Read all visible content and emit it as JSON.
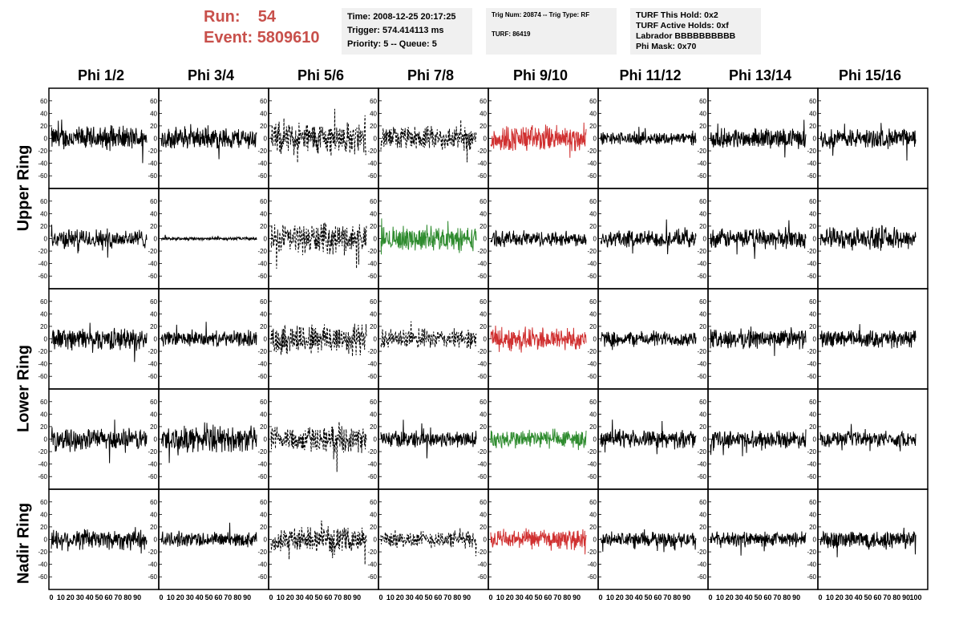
{
  "header": {
    "run_label": "Run:",
    "run_value": "54",
    "event_label": "Event:",
    "event_value": "5809610",
    "time": "Time: 2008-12-25 20:17:25",
    "trigger": "Trigger: 574.414113 ms",
    "priority": "Priority: 5 -- Queue: 5",
    "trig_num": "Trig Num: 20874 -- Trig Type: RF",
    "turf": "TURF: 86419",
    "turf_hold": "TURF This Hold: 0x2",
    "turf_active": "TURF Active Holds: 0xf",
    "labrador": "Labrador BBBBBBBBBB",
    "phi_mask": "Phi Mask: 0x70"
  },
  "columns": [
    "Phi 1/2",
    "Phi 3/4",
    "Phi 5/6",
    "Phi 7/8",
    "Phi 9/10",
    "Phi 11/12",
    "Phi 13/14",
    "Phi 15/16"
  ],
  "row_labels": [
    "Upper Ring",
    "Lower Ring",
    "Nadir Ring"
  ],
  "colors": {
    "accent": "#c8504b",
    "red_trace": "#d03030",
    "green_trace": "#2e8b2e",
    "black_trace": "#000000",
    "panel_bg": "#f0f0f0"
  },
  "chart_data": {
    "type": "line",
    "description_of_grid": "5 rows x 8 columns of waveform panels",
    "x_ticks": [
      "0",
      "10",
      "20",
      "30",
      "40",
      "50",
      "60",
      "70",
      "80",
      "90",
      "100"
    ],
    "y_ticks": [
      "-60",
      "-40",
      "-20",
      "0",
      "20",
      "40",
      "60"
    ],
    "xlim": [
      0,
      100
    ],
    "ylim": [
      -70,
      70
    ],
    "panels": [
      [
        {
          "style": "solid",
          "color": "black",
          "amp": 22
        },
        {
          "style": "solid",
          "color": "black",
          "amp": 20
        },
        {
          "style": "dashed",
          "color": "black",
          "amp": 30
        },
        {
          "style": "dashed",
          "color": "black",
          "amp": 22
        },
        {
          "style": "solid",
          "color": "red",
          "amp": 25
        },
        {
          "style": "solid",
          "color": "black",
          "amp": 12
        },
        {
          "style": "solid",
          "color": "black",
          "amp": 18
        },
        {
          "style": "solid",
          "color": "black",
          "amp": 18
        }
      ],
      [
        {
          "style": "solid",
          "color": "black",
          "amp": 18
        },
        {
          "style": "solid",
          "color": "black",
          "amp": 3
        },
        {
          "style": "dashed",
          "color": "black",
          "amp": 28
        },
        {
          "style": "solid",
          "color": "green",
          "amp": 22
        },
        {
          "style": "solid",
          "color": "black",
          "amp": 14
        },
        {
          "style": "solid",
          "color": "black",
          "amp": 16
        },
        {
          "style": "solid",
          "color": "black",
          "amp": 18
        },
        {
          "style": "solid",
          "color": "black",
          "amp": 20
        }
      ],
      [
        {
          "style": "solid",
          "color": "black",
          "amp": 20
        },
        {
          "style": "solid",
          "color": "black",
          "amp": 14
        },
        {
          "style": "dashed",
          "color": "black",
          "amp": 30
        },
        {
          "style": "dashed",
          "color": "black",
          "amp": 18
        },
        {
          "style": "solid",
          "color": "red",
          "amp": 22
        },
        {
          "style": "solid",
          "color": "black",
          "amp": 14
        },
        {
          "style": "solid",
          "color": "black",
          "amp": 18
        },
        {
          "style": "solid",
          "color": "black",
          "amp": 16
        }
      ],
      [
        {
          "style": "solid",
          "color": "black",
          "amp": 20
        },
        {
          "style": "solid",
          "color": "black",
          "amp": 24
        },
        {
          "style": "dashed",
          "color": "black",
          "amp": 24
        },
        {
          "style": "solid",
          "color": "black",
          "amp": 16
        },
        {
          "style": "solid",
          "color": "green",
          "amp": 18
        },
        {
          "style": "solid",
          "color": "black",
          "amp": 16
        },
        {
          "style": "solid",
          "color": "black",
          "amp": 16
        },
        {
          "style": "solid",
          "color": "black",
          "amp": 14
        }
      ],
      [
        {
          "style": "solid",
          "color": "black",
          "amp": 20
        },
        {
          "style": "solid",
          "color": "black",
          "amp": 14
        },
        {
          "style": "dashed",
          "color": "black",
          "amp": 22
        },
        {
          "style": "dashed",
          "color": "black",
          "amp": 16
        },
        {
          "style": "solid",
          "color": "red",
          "amp": 18
        },
        {
          "style": "solid",
          "color": "black",
          "amp": 14
        },
        {
          "style": "solid",
          "color": "black",
          "amp": 14
        },
        {
          "style": "solid",
          "color": "black",
          "amp": 18
        }
      ]
    ]
  }
}
